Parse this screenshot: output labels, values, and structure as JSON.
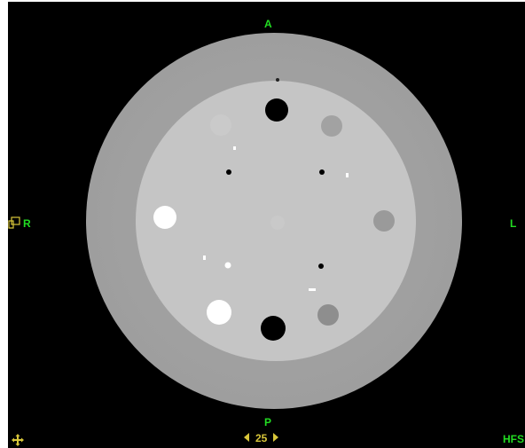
{
  "viewer": {
    "orientation": {
      "anterior": "A",
      "posterior": "P",
      "right": "R",
      "left": "L",
      "patient_position": "HFS"
    },
    "slice_number": "25",
    "annotation_color": "#22dd22",
    "nav_color": "#d8c63a",
    "icons": {
      "pan": "move-arrows-icon",
      "window_level": "window-level-icon",
      "prev": "triangle-left-icon",
      "next": "triangle-right-icon"
    }
  }
}
